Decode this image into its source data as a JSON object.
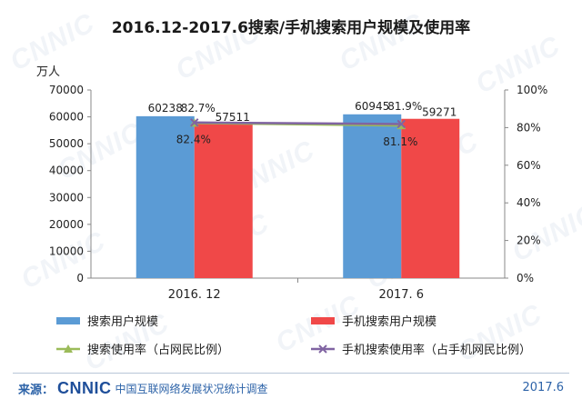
{
  "watermark": "CNNIC",
  "title": "2016.12-2017.6搜索/手机搜索用户规模及使用率",
  "unit_label": "万人",
  "chart_data": {
    "type": "bar",
    "title": "2016.12-2017.6搜索/手机搜索用户规模及使用率",
    "categories": [
      "2016. 12",
      "2017. 6"
    ],
    "ylim": [
      0,
      70000
    ],
    "y_ticks": [
      "70000",
      "60000",
      "50000",
      "40000",
      "30000",
      "20000",
      "10000",
      "0"
    ],
    "y2lim": [
      0,
      100
    ],
    "y2_ticks": [
      "100%",
      "80%",
      "60%",
      "40%",
      "20%",
      "0%"
    ],
    "series": [
      {
        "name": "搜索用户规模",
        "type": "bar",
        "axis": "left",
        "color": "#5b9bd5",
        "values": [
          60238,
          60945
        ],
        "labels": [
          "60238",
          "60945"
        ]
      },
      {
        "name": "手机搜索用户规模",
        "type": "bar",
        "axis": "left",
        "color": "#f04848",
        "values": [
          57511,
          59271
        ],
        "labels": [
          "57511",
          "59271"
        ]
      },
      {
        "name": "搜索使用率（占网民比例）",
        "type": "line",
        "axis": "right",
        "color": "#9bbb59",
        "marker": "triangle",
        "values": [
          82.4,
          81.1
        ],
        "labels": [
          "82.4%",
          "81.1%"
        ]
      },
      {
        "name": "手机搜索使用率（占手机网民比例）",
        "type": "line",
        "axis": "right",
        "color": "#8064a2",
        "marker": "x",
        "values": [
          82.7,
          81.9
        ],
        "labels": [
          "82.7%",
          "81.9%"
        ]
      }
    ],
    "legend_position": "bottom",
    "grid": false
  },
  "footer": {
    "source_label": "来源：",
    "logo": "CNNIC",
    "org": "中国互联网络发展状况统计调查",
    "date": "2017.6"
  }
}
